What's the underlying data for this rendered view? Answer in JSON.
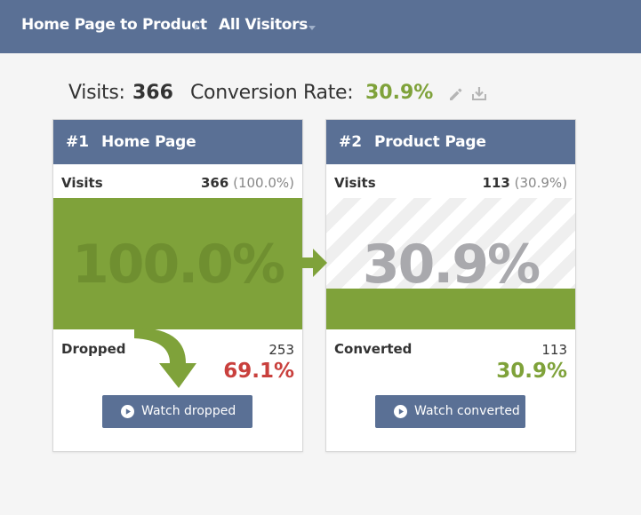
{
  "header": {
    "funnel_name": "Home Page to Product",
    "segment": "All Visitors",
    "icons": {
      "separator": "chevron-right-icon",
      "dropdown": "caret-down-icon"
    }
  },
  "summary": {
    "visits_label": "Visits:",
    "visits_value": "366",
    "conversion_label": "Conversion Rate:",
    "conversion_value": "30.9%",
    "icons": {
      "edit": "pencil-icon",
      "download": "download-icon"
    }
  },
  "colors": {
    "header": "#5a7095",
    "green": "#7fa23a",
    "red": "#c9403d",
    "background": "#f5f5f5"
  },
  "steps": [
    {
      "number": "#1",
      "title": "Home Page",
      "visits_label": "Visits",
      "visits_count": "366",
      "visits_pct": "(100.0%)",
      "big_pct": "100.0%",
      "fill_fraction": 1.0,
      "outcome_label": "Dropped",
      "outcome_count": "253",
      "outcome_pct": "69.1%",
      "button_label": "Watch dropped",
      "button_icon": "play-icon"
    },
    {
      "number": "#2",
      "title": "Product Page",
      "visits_label": "Visits",
      "visits_count": "113",
      "visits_pct": "(30.9%)",
      "big_pct": "30.9%",
      "fill_fraction": 0.309,
      "outcome_label": "Converted",
      "outcome_count": "113",
      "outcome_pct": "30.9%",
      "button_label": "Watch converted",
      "button_icon": "play-icon"
    }
  ]
}
